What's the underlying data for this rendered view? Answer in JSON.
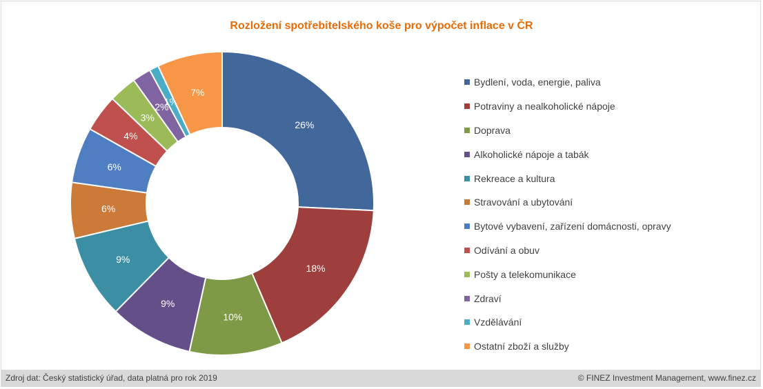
{
  "chart_data": {
    "type": "pie",
    "style": "donut",
    "title": "Rozložení spotřebitelského koše pro výpočet inflace v ČR",
    "legend_position": "right",
    "categories": [
      "Bydlení, voda, energie, paliva",
      "Potraviny a nealkoholické nápoje",
      "Doprava",
      "Alkoholické nápoje a tabák",
      "Rekreace a kultura",
      "Stravování a ubytování",
      "Bytové vybavení, zařízení domácnosti, opravy",
      "Odívání a obuv",
      "Pošty a telekomunikace",
      "Zdraví",
      "Vzdělávání",
      "Ostatní zboží a služby"
    ],
    "values": [
      26,
      18,
      10,
      9,
      9,
      6,
      6,
      4,
      3,
      2,
      1,
      7
    ],
    "labels": [
      "26%",
      "18%",
      "10%",
      "9%",
      "9%",
      "6%",
      "6%",
      "4%",
      "3%",
      "2%",
      "1%",
      "7%"
    ],
    "colors": [
      "#41679b",
      "#9e3f3d",
      "#7e9a46",
      "#654f89",
      "#3c8ea5",
      "#cc7a38",
      "#4f7fc2",
      "#c0504d",
      "#9bbb59",
      "#8064a2",
      "#4bacc6",
      "#f79646"
    ]
  },
  "footer": {
    "source": "Zdroj dat: Český statistický úřad, data platná pro rok 2019",
    "copyright": "© FINEZ Investment Management, www.finez.cz"
  }
}
